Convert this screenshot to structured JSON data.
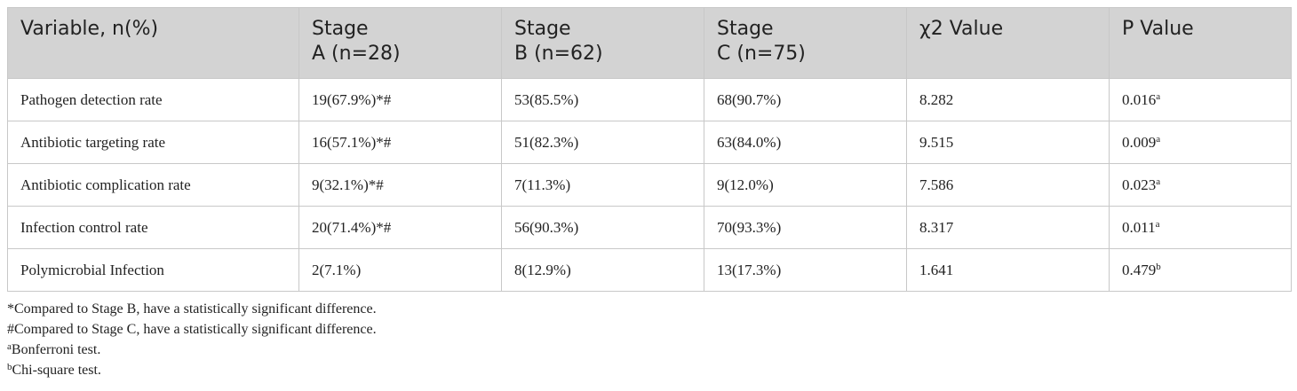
{
  "table": {
    "headers": [
      {
        "line1": "Variable, n(%)",
        "line2": ""
      },
      {
        "line1": "Stage",
        "line2": "A (n=28)"
      },
      {
        "line1": "Stage",
        "line2": "B (n=62)"
      },
      {
        "line1": "Stage",
        "line2": "C (n=75)"
      },
      {
        "line1": "χ2 Value",
        "line2": ""
      },
      {
        "line1": "P Value",
        "line2": ""
      }
    ],
    "rows": [
      {
        "variable": "Pathogen detection rate",
        "stage_a": "19(67.9%)*#",
        "stage_b": "53(85.5%)",
        "stage_c": "68(90.7%)",
        "chi2": "8.282",
        "p_value": "0.016",
        "p_sup": "a"
      },
      {
        "variable": "Antibiotic targeting rate",
        "stage_a": "16(57.1%)*#",
        "stage_b": "51(82.3%)",
        "stage_c": "63(84.0%)",
        "chi2": "9.515",
        "p_value": "0.009",
        "p_sup": "a"
      },
      {
        "variable": "Antibiotic complication rate",
        "stage_a": "9(32.1%)*#",
        "stage_b": "7(11.3%)",
        "stage_c": "9(12.0%)",
        "chi2": "7.586",
        "p_value": "0.023",
        "p_sup": "a"
      },
      {
        "variable": "Infection control rate",
        "stage_a": "20(71.4%)*#",
        "stage_b": "56(90.3%)",
        "stage_c": "70(93.3%)",
        "chi2": "8.317",
        "p_value": "0.011",
        "p_sup": "a"
      },
      {
        "variable": "Polymicrobial Infection",
        "stage_a": "2(7.1%)",
        "stage_b": "8(12.9%)",
        "stage_c": "13(17.3%)",
        "chi2": "1.641",
        "p_value": "0.479",
        "p_sup": "b"
      }
    ]
  },
  "footnotes": [
    {
      "sup": "",
      "text": "*Compared to Stage B, have a statistically significant difference."
    },
    {
      "sup": "",
      "text": "#Compared to Stage C, have a statistically significant difference."
    },
    {
      "sup": "a",
      "text": "Bonferroni test."
    },
    {
      "sup": "b",
      "text": "Chi-square test."
    }
  ]
}
